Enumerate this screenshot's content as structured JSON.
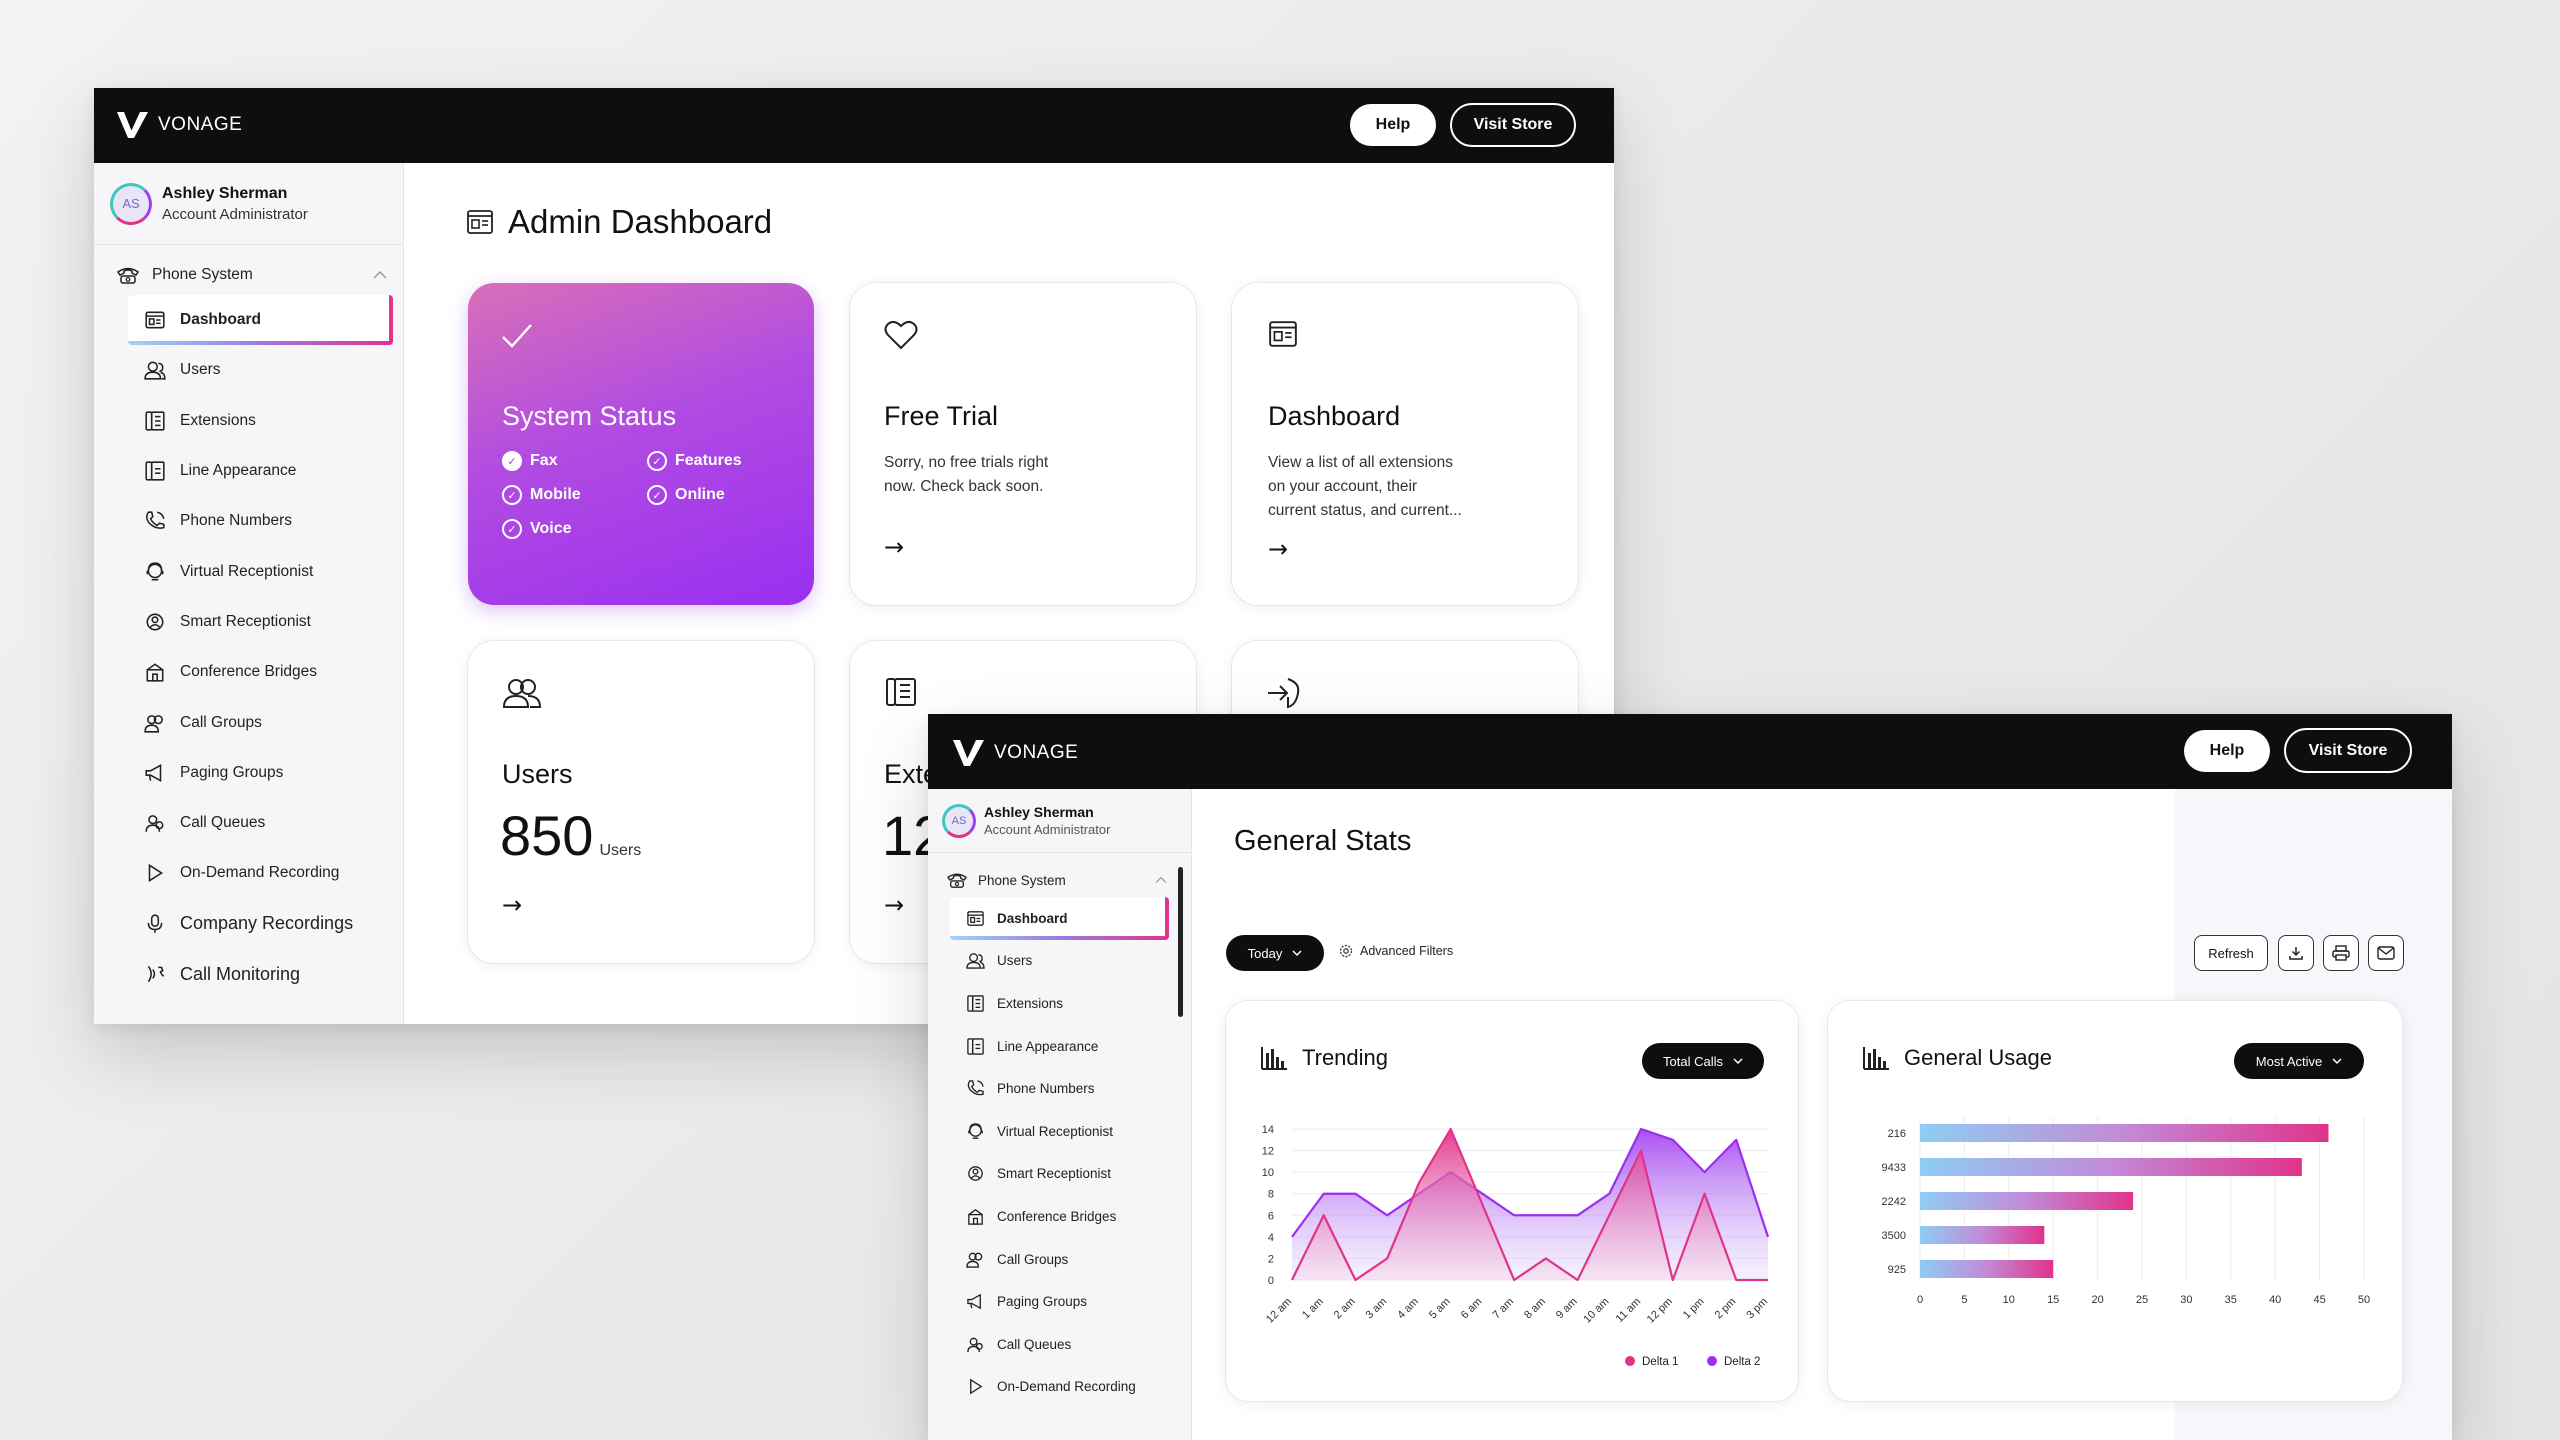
{
  "brand": {
    "name": "VONAGE"
  },
  "header": {
    "help": "Help",
    "visit_store": "Visit Store"
  },
  "user": {
    "initials": "AS",
    "name": "Ashley Sherman",
    "role": "Account Administrator"
  },
  "nav": {
    "section": "Phone System",
    "items": [
      "Dashboard",
      "Users",
      "Extensions",
      "Line Appearance",
      "Phone Numbers",
      "Virtual Receptionist",
      "Smart Receptionist",
      "Conference Bridges",
      "Call Groups",
      "Paging Groups",
      "Call Queues",
      "On-Demand Recording",
      "Company Recordings",
      "Call Monitoring"
    ]
  },
  "admin": {
    "title": "Admin Dashboard",
    "status_card": {
      "title": "System Status",
      "checks": [
        {
          "label": "Fax",
          "filled": true
        },
        {
          "label": "Features",
          "filled": false
        },
        {
          "label": "Mobile",
          "filled": false
        },
        {
          "label": "Online",
          "filled": false
        },
        {
          "label": "Voice",
          "filled": false
        }
      ]
    },
    "trial_card": {
      "title": "Free Trial",
      "desc1": "Sorry, no free trials right",
      "desc2": "now. Check back soon."
    },
    "dash_card": {
      "title": "Dashboard",
      "desc1": "View a list of all extensions",
      "desc2": "on your account, their",
      "desc3": "current status, and current..."
    },
    "users_card": {
      "title": "Users",
      "count": "850",
      "unit": "Users"
    },
    "ext_card": {
      "title_partial": "Exte",
      "count_partial": "12"
    },
    "arrow": "→"
  },
  "stats": {
    "title": "General Stats",
    "filter": "Today",
    "advanced": "Advanced Filters",
    "refresh": "Refresh"
  },
  "icons": {
    "check": "✓",
    "chevron": "chevron-down-icon"
  },
  "colors": {
    "accent_pink": "#e0338a",
    "accent_purple": "#9a2ff0",
    "bar_blue": "#8ecdf3"
  },
  "chart_data": [
    {
      "type": "area",
      "title": "Trending",
      "dropdown": "Total Calls",
      "x": [
        "12 am",
        "1 am",
        "2 am",
        "3 am",
        "4 am",
        "5 am",
        "6 am",
        "7 am",
        "8 am",
        "9 am",
        "10 am",
        "11 am",
        "12 pm",
        "1 pm",
        "2 pm",
        "3 pm"
      ],
      "yticks": [
        "0",
        "2",
        "4",
        "6",
        "8",
        "10",
        "12",
        "14"
      ],
      "ylim": [
        0,
        14
      ],
      "series": [
        {
          "name": "Delta 1",
          "color": "#e0338a",
          "values": [
            0,
            6,
            0,
            2,
            9,
            14,
            7,
            0,
            2,
            0,
            6,
            12,
            0,
            8,
            0,
            0
          ]
        },
        {
          "name": "Delta 2",
          "color": "#9a2ff0",
          "values": [
            4,
            8,
            8,
            6,
            8,
            10,
            8,
            6,
            6,
            6,
            8,
            14,
            13,
            10,
            13,
            4
          ]
        }
      ],
      "legend_position": "bottom-right"
    },
    {
      "type": "bar",
      "orientation": "horizontal",
      "title": "General Usage",
      "dropdown": "Most Active",
      "categories": [
        "216",
        "9433",
        "2242",
        "3500",
        "925"
      ],
      "values": [
        46,
        43,
        24,
        14,
        15
      ],
      "xticks": [
        "0",
        "5",
        "10",
        "15",
        "20",
        "25",
        "30",
        "35",
        "40",
        "45",
        "50"
      ],
      "xlim": [
        0,
        50
      ]
    }
  ]
}
